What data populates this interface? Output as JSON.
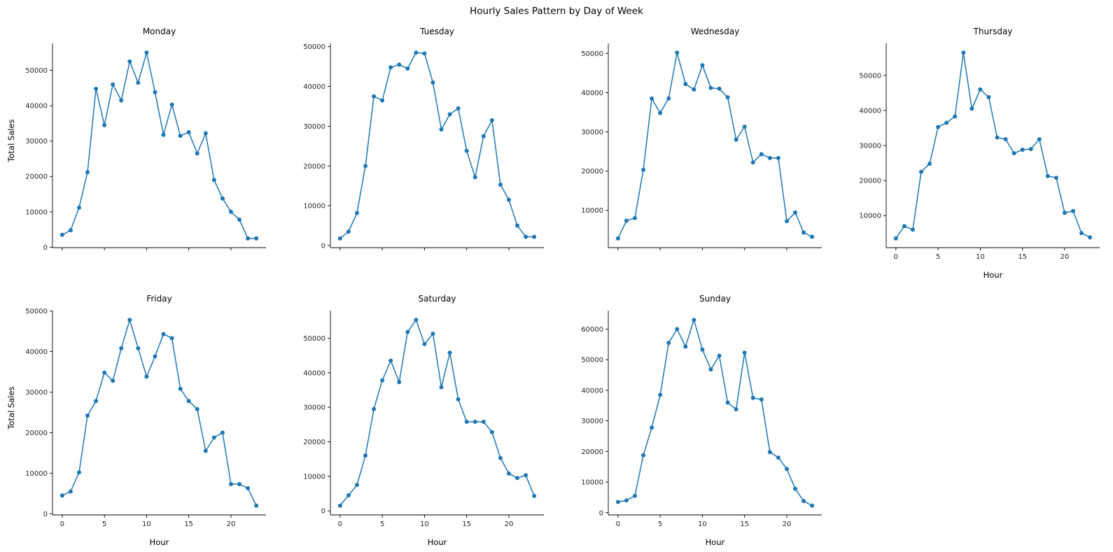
{
  "chart_data": {
    "type": "line",
    "title": "Hourly Sales Pattern by Day of Week",
    "xlabel": "Hour",
    "ylabel": "Total Sales",
    "x": [
      0,
      1,
      2,
      3,
      4,
      5,
      6,
      7,
      8,
      9,
      10,
      11,
      12,
      13,
      14,
      15,
      16,
      17,
      18,
      19,
      20,
      21,
      22,
      23
    ],
    "x_ticks": [
      0,
      5,
      10,
      15,
      20
    ],
    "y_tick_step": 10000,
    "grid": false,
    "marker": "circle",
    "line_color": "#1f77b4",
    "axis_color": "#000000",
    "text_color": "#262626",
    "layout": "4 columns x 2 rows facet grid, left/bottom spines only",
    "series": [
      {
        "name": "Monday",
        "values": [
          3500,
          4800,
          11200,
          21200,
          44800,
          34500,
          46000,
          41500,
          52500,
          46500,
          55000,
          43800,
          31800,
          40300,
          31500,
          32500,
          26500,
          32200,
          19000,
          13800,
          10000,
          7800,
          2500,
          2500
        ]
      },
      {
        "name": "Tuesday",
        "values": [
          1800,
          3500,
          8200,
          20000,
          37500,
          36500,
          44800,
          45500,
          44500,
          48500,
          48300,
          41000,
          29200,
          33000,
          34500,
          23800,
          17200,
          27500,
          31500,
          15300,
          11500,
          5000,
          2200,
          2200
        ]
      },
      {
        "name": "Wednesday",
        "values": [
          2800,
          7300,
          8000,
          20300,
          38500,
          34800,
          38500,
          50200,
          42200,
          40800,
          47000,
          41200,
          41000,
          38800,
          28000,
          31300,
          22200,
          24300,
          23300,
          23300,
          7200,
          9400,
          4300,
          3200
        ]
      },
      {
        "name": "Thursday",
        "values": [
          3500,
          7000,
          6000,
          22500,
          24800,
          35300,
          36500,
          38300,
          56500,
          40500,
          46000,
          43800,
          32300,
          31800,
          27800,
          28800,
          29000,
          31800,
          21300,
          20800,
          10800,
          11300,
          5000,
          3800
        ]
      },
      {
        "name": "Friday",
        "values": [
          4500,
          5500,
          10200,
          24200,
          27800,
          34800,
          32800,
          40800,
          47800,
          40800,
          33800,
          38800,
          44300,
          43300,
          30800,
          27800,
          25800,
          15500,
          18800,
          20000,
          7300,
          7300,
          6300,
          2000
        ]
      },
      {
        "name": "Saturday",
        "values": [
          1500,
          4500,
          7500,
          16000,
          29500,
          37800,
          43500,
          37300,
          51800,
          55300,
          48300,
          51300,
          35800,
          45800,
          32300,
          25800,
          25800,
          25800,
          22800,
          15300,
          10800,
          9500,
          10300,
          4300
        ]
      },
      {
        "name": "Sunday",
        "values": [
          3500,
          4000,
          5500,
          18800,
          27800,
          38500,
          55500,
          60000,
          54300,
          63000,
          53300,
          46800,
          51300,
          36000,
          33800,
          52300,
          37500,
          37000,
          19800,
          18000,
          14300,
          7800,
          3800,
          2300
        ]
      }
    ]
  }
}
